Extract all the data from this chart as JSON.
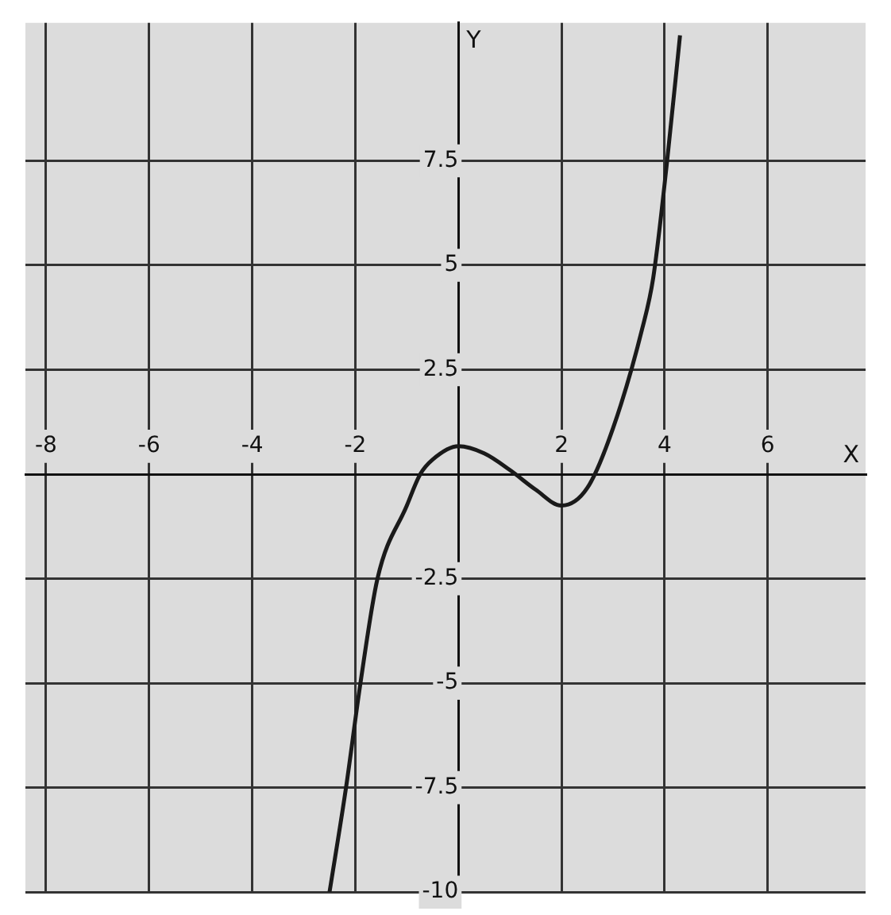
{
  "chart_data": {
    "type": "line",
    "xlabel": "X",
    "ylabel": "Y",
    "x": [
      -2.5,
      -2.18,
      -1.9,
      -1.57,
      -1,
      -0.74,
      -0.5,
      0,
      0.5,
      1,
      1.5,
      2,
      2.5,
      3,
      3.57,
      3.78,
      4.05,
      4.3
    ],
    "series": [
      {
        "color": "#1a1a1a",
        "values": [
          -10,
          -7.5,
          -5,
          -2.5,
          -0.75,
          0,
          0.35,
          0.67,
          0.5,
          0.1,
          -0.37,
          -0.75,
          -0.33,
          1.1,
          3.5,
          4.7,
          7.5,
          10.5
        ]
      }
    ],
    "xlim": [
      -8.4,
      7.9
    ],
    "ylim": [
      -10,
      10.8
    ],
    "xticks": [
      -8,
      -6,
      -4,
      -2,
      2,
      4,
      6
    ],
    "yticks": [
      -10,
      -7.5,
      -5,
      -2.5,
      2.5,
      5,
      7.5
    ],
    "grid": true,
    "legend": false,
    "marker": "none",
    "line_style": "solid"
  }
}
